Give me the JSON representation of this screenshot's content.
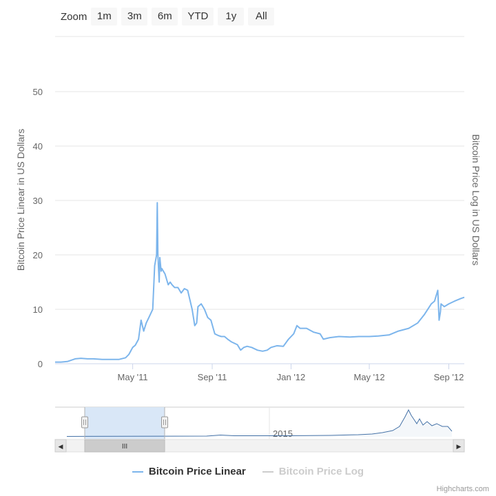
{
  "zoom": {
    "label": "Zoom",
    "buttons": [
      "1m",
      "3m",
      "6m",
      "YTD",
      "1y",
      "All"
    ]
  },
  "colors": {
    "series_linear": "#7cb5ec",
    "series_log_hidden": "#cccccc",
    "grid": "#e6e6e6",
    "axis_text": "#666666",
    "navigator_mask": "#d5e4f6",
    "scrollbar_bg": "#f2f2f2",
    "scrollbar_thumb": "#cccccc"
  },
  "credit": "Highcharts.com",
  "navigator": {
    "label": "2015",
    "handle_glyph": "III",
    "left_arrow": "◀",
    "right_arrow": "▶"
  },
  "chart_data": {
    "type": "line",
    "title": "",
    "xlabel": "",
    "ylabel": "Bitcoin Price Linear in US Dollars",
    "ylabel_right": "Bitcoin Price Log in US Dollars",
    "ylim": [
      0,
      50
    ],
    "yticks": [
      0,
      10,
      20,
      30,
      40,
      50
    ],
    "xlim": [
      "2011-01-01",
      "2012-09-25"
    ],
    "xticks": [
      {
        "date": "2011-05-01",
        "label": "May '11"
      },
      {
        "date": "2011-09-01",
        "label": "Sep '11"
      },
      {
        "date": "2012-01-01",
        "label": "Jan '12"
      },
      {
        "date": "2012-05-01",
        "label": "May '12"
      },
      {
        "date": "2012-09-01",
        "label": "Sep '12"
      }
    ],
    "grid": true,
    "legend_position": "bottom-center",
    "series": [
      {
        "name": "Bitcoin Price Linear",
        "visible": true,
        "x": [
          "2011-01-01",
          "2011-01-10",
          "2011-01-20",
          "2011-02-01",
          "2011-02-10",
          "2011-02-20",
          "2011-03-01",
          "2011-03-15",
          "2011-04-01",
          "2011-04-10",
          "2011-04-20",
          "2011-04-25",
          "2011-05-01",
          "2011-05-05",
          "2011-05-10",
          "2011-05-14",
          "2011-05-18",
          "2011-05-22",
          "2011-05-26",
          "2011-06-01",
          "2011-06-04",
          "2011-06-07",
          "2011-06-08",
          "2011-06-09",
          "2011-06-11",
          "2011-06-12",
          "2011-06-14",
          "2011-06-15",
          "2011-06-20",
          "2011-06-25",
          "2011-06-28",
          "2011-07-01",
          "2011-07-05",
          "2011-07-10",
          "2011-07-15",
          "2011-07-20",
          "2011-07-25",
          "2011-08-01",
          "2011-08-05",
          "2011-08-08",
          "2011-08-10",
          "2011-08-15",
          "2011-08-20",
          "2011-08-25",
          "2011-08-30",
          "2011-09-05",
          "2011-09-10",
          "2011-09-15",
          "2011-09-20",
          "2011-09-25",
          "2011-10-01",
          "2011-10-10",
          "2011-10-15",
          "2011-10-20",
          "2011-10-25",
          "2011-11-01",
          "2011-11-10",
          "2011-11-18",
          "2011-11-25",
          "2011-12-01",
          "2011-12-10",
          "2011-12-20",
          "2011-12-28",
          "2012-01-05",
          "2012-01-10",
          "2012-01-15",
          "2012-01-25",
          "2012-02-05",
          "2012-02-15",
          "2012-02-20",
          "2012-03-01",
          "2012-03-15",
          "2012-04-01",
          "2012-04-15",
          "2012-05-01",
          "2012-05-15",
          "2012-06-01",
          "2012-06-15",
          "2012-07-01",
          "2012-07-15",
          "2012-07-25",
          "2012-08-05",
          "2012-08-10",
          "2012-08-15",
          "2012-08-17",
          "2012-08-19",
          "2012-08-20",
          "2012-08-25",
          "2012-09-01",
          "2012-09-10",
          "2012-09-20",
          "2012-09-25"
        ],
        "y": [
          0.3,
          0.3,
          0.4,
          0.9,
          1.0,
          0.9,
          0.9,
          0.8,
          0.8,
          0.8,
          1.1,
          1.7,
          3.0,
          3.4,
          4.5,
          8.0,
          6.0,
          7.5,
          8.5,
          10.0,
          18.0,
          20.0,
          29.6,
          20.0,
          15.0,
          19.5,
          17.0,
          17.5,
          16.5,
          14.5,
          15.0,
          14.5,
          14.0,
          14.0,
          13.0,
          13.8,
          13.5,
          10.0,
          7.0,
          7.5,
          10.5,
          11.0,
          10.0,
          8.5,
          8.0,
          5.5,
          5.2,
          5.0,
          5.0,
          4.5,
          4.0,
          3.5,
          2.5,
          3.0,
          3.2,
          3.0,
          2.5,
          2.3,
          2.5,
          3.0,
          3.3,
          3.2,
          4.5,
          5.5,
          7.0,
          6.5,
          6.5,
          5.8,
          5.5,
          4.5,
          4.8,
          5.0,
          4.9,
          5.0,
          5.0,
          5.1,
          5.3,
          6.0,
          6.5,
          7.5,
          9.0,
          11.0,
          11.5,
          13.5,
          8.0,
          9.5,
          11.0,
          10.5,
          11.0,
          11.5,
          12.0,
          12.2
        ]
      },
      {
        "name": "Bitcoin Price Log",
        "visible": false,
        "x": [],
        "y": []
      }
    ]
  }
}
